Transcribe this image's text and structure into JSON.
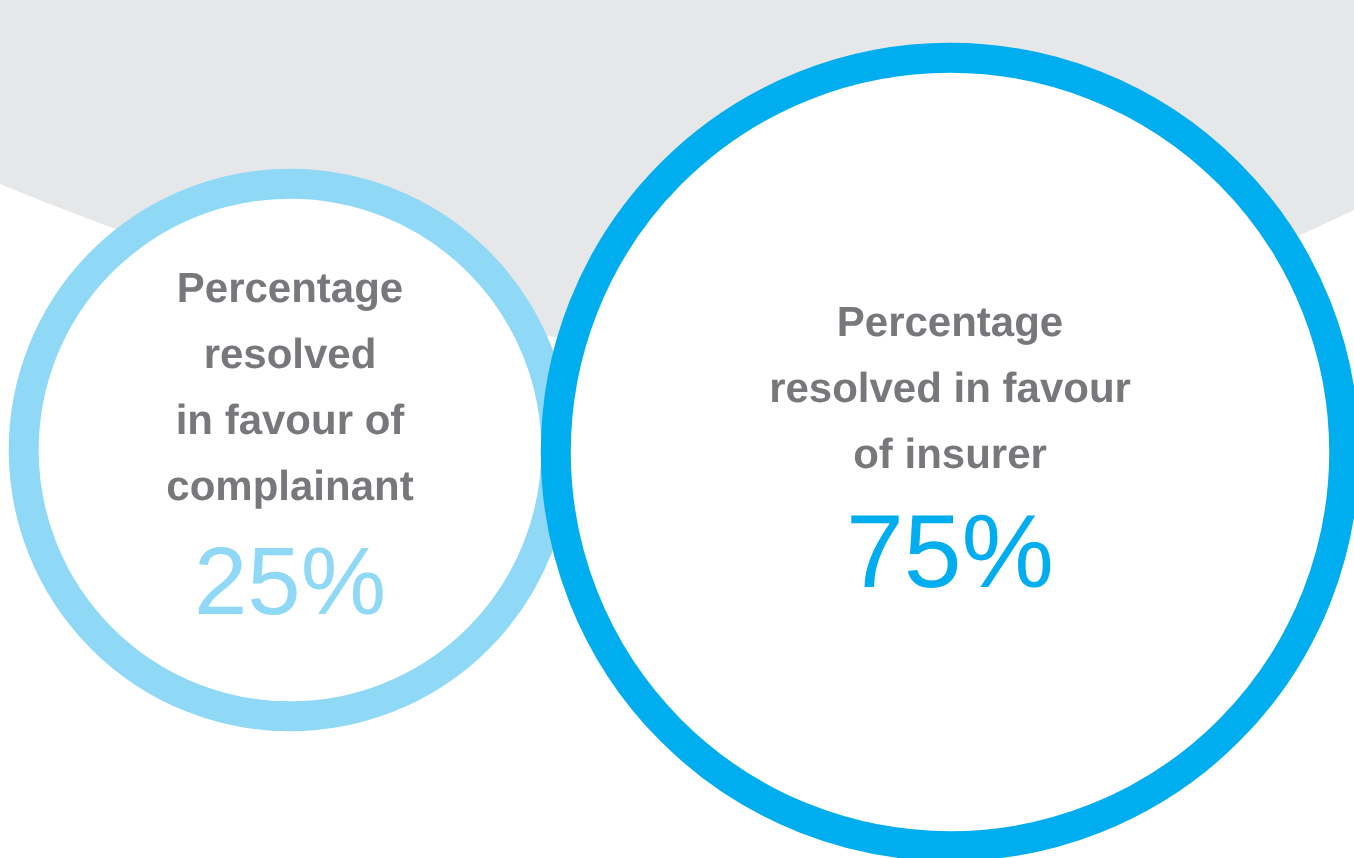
{
  "chart_data": {
    "type": "other",
    "categories": [
      "Percentage\nresolved\nin favour of\ncomplainant",
      "Percentage\nresolved in favour\nof insurer"
    ],
    "values": [
      25,
      75
    ],
    "value_labels": [
      "25%",
      "75%"
    ],
    "colors": [
      "#8fd9f7",
      "#00adee"
    ]
  }
}
